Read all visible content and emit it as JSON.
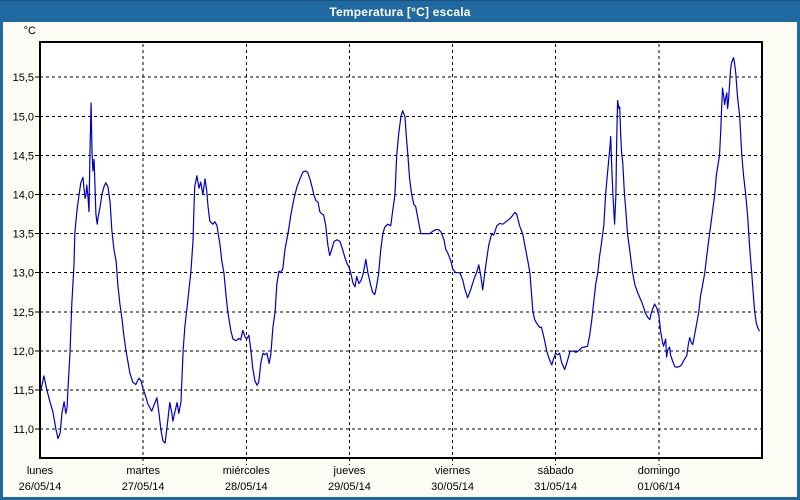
{
  "window": {
    "title": "Temperatura [°C] escala"
  },
  "colors": {
    "titlebar": "#2068A0",
    "window_border": "#2068A0",
    "background": "#FCFCF4",
    "plot_background": "#FFFFFF",
    "grid": "#000000",
    "series": "#0000BE"
  },
  "chart_data": {
    "type": "line",
    "title": "Temperatura [°C] escala",
    "unit_label": "°C",
    "grid": "dashed",
    "legend_position": "none",
    "ylim": [
      10.63,
      15.95
    ],
    "xlim_hours": [
      0,
      168
    ],
    "y_ticks": [
      {
        "value": 15.5,
        "label": "15,5"
      },
      {
        "value": 15.0,
        "label": "15,0"
      },
      {
        "value": 14.5,
        "label": "14,5"
      },
      {
        "value": 14.0,
        "label": "14,0"
      },
      {
        "value": 13.5,
        "label": "13,5"
      },
      {
        "value": 13.0,
        "label": "13,0"
      },
      {
        "value": 12.5,
        "label": "12,5"
      },
      {
        "value": 12.0,
        "label": "12,0"
      },
      {
        "value": 11.5,
        "label": "11,5"
      },
      {
        "value": 11.0,
        "label": "11,0"
      }
    ],
    "x_days": [
      {
        "name": "lunes",
        "date": "26/05/14"
      },
      {
        "name": "martes",
        "date": "27/05/14"
      },
      {
        "name": "miércoles",
        "date": "28/05/14"
      },
      {
        "name": "jueves",
        "date": "29/05/14"
      },
      {
        "name": "viernes",
        "date": "30/05/14"
      },
      {
        "name": "sábado",
        "date": "31/05/14"
      },
      {
        "name": "domingo",
        "date": "01/06/14"
      }
    ],
    "series_name": "Temperatura",
    "points": [
      [
        0.0,
        11.45
      ],
      [
        0.5,
        11.57
      ],
      [
        0.9,
        11.68
      ],
      [
        1.6,
        11.5
      ],
      [
        2.3,
        11.35
      ],
      [
        3.0,
        11.22
      ],
      [
        3.7,
        11.0
      ],
      [
        4.2,
        10.88
      ],
      [
        4.7,
        10.95
      ],
      [
        5.1,
        11.2
      ],
      [
        5.6,
        11.35
      ],
      [
        6.0,
        11.2
      ],
      [
        6.3,
        11.28
      ],
      [
        6.5,
        11.5
      ],
      [
        7.0,
        12.0
      ],
      [
        7.2,
        12.3
      ],
      [
        7.4,
        12.6
      ],
      [
        7.7,
        12.9
      ],
      [
        7.9,
        13.1
      ],
      [
        8.1,
        13.5
      ],
      [
        8.6,
        13.8
      ],
      [
        9.1,
        14.0
      ],
      [
        9.5,
        14.15
      ],
      [
        10.0,
        14.22
      ],
      [
        10.2,
        14.1
      ],
      [
        10.5,
        13.95
      ],
      [
        10.7,
        14.0
      ],
      [
        10.9,
        14.12
      ],
      [
        11.2,
        13.95
      ],
      [
        11.4,
        13.78
      ],
      [
        11.6,
        14.5
      ],
      [
        11.9,
        15.17
      ],
      [
        12.1,
        14.55
      ],
      [
        12.3,
        14.3
      ],
      [
        12.6,
        14.45
      ],
      [
        12.8,
        14.1
      ],
      [
        13.0,
        13.75
      ],
      [
        13.3,
        13.62
      ],
      [
        13.5,
        13.7
      ],
      [
        14.0,
        13.85
      ],
      [
        14.4,
        14.0
      ],
      [
        14.9,
        14.1
      ],
      [
        15.3,
        14.15
      ],
      [
        15.8,
        14.1
      ],
      [
        16.3,
        13.9
      ],
      [
        16.7,
        13.55
      ],
      [
        17.2,
        13.3
      ],
      [
        17.7,
        13.15
      ],
      [
        18.1,
        12.85
      ],
      [
        18.6,
        12.6
      ],
      [
        19.1,
        12.4
      ],
      [
        19.5,
        12.2
      ],
      [
        20.0,
        12.0
      ],
      [
        20.5,
        11.85
      ],
      [
        20.9,
        11.72
      ],
      [
        21.6,
        11.6
      ],
      [
        22.3,
        11.57
      ],
      [
        23.0,
        11.65
      ],
      [
        23.5,
        11.62
      ],
      [
        24.0,
        11.51
      ],
      [
        24.4,
        11.45
      ],
      [
        25.1,
        11.32
      ],
      [
        26.0,
        11.23
      ],
      [
        26.7,
        11.33
      ],
      [
        27.2,
        11.4
      ],
      [
        27.7,
        11.2
      ],
      [
        28.1,
        11.0
      ],
      [
        28.6,
        10.85
      ],
      [
        29.1,
        10.82
      ],
      [
        29.5,
        11.0
      ],
      [
        30.2,
        11.34
      ],
      [
        30.7,
        11.2
      ],
      [
        30.9,
        11.1
      ],
      [
        31.4,
        11.22
      ],
      [
        31.9,
        11.34
      ],
      [
        32.3,
        11.2
      ],
      [
        32.8,
        11.35
      ],
      [
        33.3,
        12.0
      ],
      [
        33.7,
        12.3
      ],
      [
        34.2,
        12.55
      ],
      [
        34.7,
        12.8
      ],
      [
        35.1,
        13.0
      ],
      [
        35.6,
        13.4
      ],
      [
        35.8,
        13.8
      ],
      [
        36.0,
        14.1
      ],
      [
        36.5,
        14.24
      ],
      [
        37.0,
        14.08
      ],
      [
        37.4,
        14.16
      ],
      [
        37.9,
        14.0
      ],
      [
        38.4,
        14.2
      ],
      [
        38.8,
        14.05
      ],
      [
        39.1,
        13.85
      ],
      [
        39.5,
        13.66
      ],
      [
        40.2,
        13.62
      ],
      [
        40.7,
        13.65
      ],
      [
        41.2,
        13.6
      ],
      [
        41.4,
        13.52
      ],
      [
        41.9,
        13.35
      ],
      [
        42.3,
        13.15
      ],
      [
        42.8,
        13.0
      ],
      [
        43.3,
        12.7
      ],
      [
        43.7,
        12.5
      ],
      [
        44.4,
        12.26
      ],
      [
        44.9,
        12.15
      ],
      [
        45.6,
        12.13
      ],
      [
        46.3,
        12.16
      ],
      [
        46.7,
        12.14
      ],
      [
        47.2,
        12.26
      ],
      [
        47.7,
        12.18
      ],
      [
        48.1,
        12.15
      ],
      [
        48.6,
        12.2
      ],
      [
        49.1,
        12.0
      ],
      [
        49.5,
        11.78
      ],
      [
        50.0,
        11.62
      ],
      [
        50.5,
        11.56
      ],
      [
        50.9,
        11.6
      ],
      [
        51.4,
        11.85
      ],
      [
        51.9,
        11.97
      ],
      [
        52.3,
        11.95
      ],
      [
        52.8,
        11.97
      ],
      [
        53.3,
        11.84
      ],
      [
        53.7,
        11.95
      ],
      [
        54.2,
        12.3
      ],
      [
        54.7,
        12.5
      ],
      [
        55.1,
        12.85
      ],
      [
        55.6,
        13.02
      ],
      [
        56.0,
        13.0
      ],
      [
        56.5,
        13.05
      ],
      [
        57.0,
        13.3
      ],
      [
        57.7,
        13.5
      ],
      [
        58.4,
        13.75
      ],
      [
        59.1,
        13.95
      ],
      [
        59.8,
        14.1
      ],
      [
        60.5,
        14.2
      ],
      [
        61.2,
        14.29
      ],
      [
        61.9,
        14.3
      ],
      [
        62.3,
        14.28
      ],
      [
        62.8,
        14.2
      ],
      [
        63.3,
        14.1
      ],
      [
        63.7,
        14.0
      ],
      [
        64.2,
        13.92
      ],
      [
        64.7,
        13.9
      ],
      [
        65.1,
        13.78
      ],
      [
        65.6,
        13.75
      ],
      [
        66.0,
        13.74
      ],
      [
        66.5,
        13.6
      ],
      [
        67.0,
        13.35
      ],
      [
        67.4,
        13.22
      ],
      [
        67.9,
        13.3
      ],
      [
        68.4,
        13.4
      ],
      [
        69.1,
        13.42
      ],
      [
        69.8,
        13.4
      ],
      [
        70.5,
        13.28
      ],
      [
        70.9,
        13.2
      ],
      [
        71.4,
        13.12
      ],
      [
        71.9,
        13.07
      ],
      [
        72.3,
        13.0
      ],
      [
        72.8,
        12.87
      ],
      [
        73.3,
        12.82
      ],
      [
        73.7,
        12.95
      ],
      [
        74.2,
        12.86
      ],
      [
        74.7,
        12.9
      ],
      [
        75.1,
        12.97
      ],
      [
        75.6,
        13.1
      ],
      [
        75.8,
        13.17
      ],
      [
        76.3,
        13.0
      ],
      [
        77.0,
        12.83
      ],
      [
        77.4,
        12.75
      ],
      [
        77.9,
        12.72
      ],
      [
        78.4,
        12.85
      ],
      [
        78.8,
        13.0
      ],
      [
        79.3,
        13.3
      ],
      [
        79.8,
        13.5
      ],
      [
        80.2,
        13.58
      ],
      [
        80.9,
        13.62
      ],
      [
        81.6,
        13.6
      ],
      [
        82.1,
        13.8
      ],
      [
        82.6,
        14.0
      ],
      [
        83.0,
        14.5
      ],
      [
        83.5,
        14.8
      ],
      [
        84.0,
        15.0
      ],
      [
        84.4,
        15.07
      ],
      [
        84.9,
        15.0
      ],
      [
        85.3,
        14.7
      ],
      [
        85.6,
        14.5
      ],
      [
        86.0,
        14.2
      ],
      [
        86.5,
        14.0
      ],
      [
        87.0,
        13.87
      ],
      [
        87.4,
        13.85
      ],
      [
        87.9,
        13.7
      ],
      [
        88.6,
        13.5
      ],
      [
        89.3,
        13.5
      ],
      [
        90.0,
        13.5
      ],
      [
        90.7,
        13.5
      ],
      [
        91.4,
        13.53
      ],
      [
        92.1,
        13.55
      ],
      [
        92.8,
        13.55
      ],
      [
        93.3,
        13.52
      ],
      [
        94.0,
        13.42
      ],
      [
        94.4,
        13.3
      ],
      [
        94.9,
        13.25
      ],
      [
        95.6,
        13.15
      ],
      [
        96.0,
        13.05
      ],
      [
        96.7,
        13.0
      ],
      [
        97.2,
        13.0
      ],
      [
        97.7,
        13.0
      ],
      [
        98.4,
        12.9
      ],
      [
        98.8,
        12.8
      ],
      [
        99.5,
        12.68
      ],
      [
        100.2,
        12.78
      ],
      [
        100.7,
        12.87
      ],
      [
        101.2,
        12.95
      ],
      [
        101.6,
        13.0
      ],
      [
        102.1,
        13.1
      ],
      [
        102.6,
        12.95
      ],
      [
        103.0,
        12.78
      ],
      [
        103.5,
        13.0
      ],
      [
        104.0,
        13.2
      ],
      [
        104.4,
        13.35
      ],
      [
        105.1,
        13.5
      ],
      [
        105.6,
        13.48
      ],
      [
        106.3,
        13.6
      ],
      [
        107.0,
        13.63
      ],
      [
        107.7,
        13.62
      ],
      [
        108.4,
        13.65
      ],
      [
        109.1,
        13.68
      ],
      [
        109.8,
        13.72
      ],
      [
        110.5,
        13.77
      ],
      [
        110.9,
        13.75
      ],
      [
        111.6,
        13.6
      ],
      [
        112.3,
        13.5
      ],
      [
        113.0,
        13.3
      ],
      [
        113.5,
        13.15
      ],
      [
        114.0,
        13.0
      ],
      [
        114.7,
        12.5
      ],
      [
        115.1,
        12.4
      ],
      [
        115.6,
        12.35
      ],
      [
        116.3,
        12.3
      ],
      [
        116.7,
        12.3
      ],
      [
        117.4,
        12.14
      ],
      [
        117.9,
        12.0
      ],
      [
        118.6,
        11.88
      ],
      [
        119.1,
        11.82
      ],
      [
        119.5,
        11.9
      ],
      [
        120.0,
        11.97
      ],
      [
        120.5,
        11.95
      ],
      [
        120.9,
        11.97
      ],
      [
        121.4,
        11.85
      ],
      [
        122.1,
        11.76
      ],
      [
        122.6,
        11.85
      ],
      [
        123.3,
        11.99
      ],
      [
        124.0,
        12.0
      ],
      [
        124.7,
        11.98
      ],
      [
        125.3,
        12.0
      ],
      [
        126.0,
        12.04
      ],
      [
        126.7,
        12.05
      ],
      [
        127.4,
        12.06
      ],
      [
        127.9,
        12.2
      ],
      [
        128.4,
        12.4
      ],
      [
        128.8,
        12.6
      ],
      [
        129.3,
        12.85
      ],
      [
        129.8,
        13.0
      ],
      [
        130.2,
        13.2
      ],
      [
        130.7,
        13.4
      ],
      [
        131.2,
        13.6
      ],
      [
        131.6,
        14.0
      ],
      [
        132.1,
        14.3
      ],
      [
        132.6,
        14.6
      ],
      [
        132.8,
        14.74
      ],
      [
        133.0,
        14.4
      ],
      [
        133.3,
        14.0
      ],
      [
        133.7,
        13.62
      ],
      [
        134.0,
        14.0
      ],
      [
        134.2,
        14.7
      ],
      [
        134.4,
        15.2
      ],
      [
        134.7,
        15.1
      ],
      [
        134.9,
        15.12
      ],
      [
        135.1,
        14.8
      ],
      [
        135.3,
        14.55
      ],
      [
        135.6,
        14.4
      ],
      [
        135.8,
        14.2
      ],
      [
        136.0,
        14.0
      ],
      [
        136.3,
        13.8
      ],
      [
        136.7,
        13.5
      ],
      [
        137.2,
        13.3
      ],
      [
        137.9,
        13.0
      ],
      [
        138.4,
        12.85
      ],
      [
        139.1,
        12.74
      ],
      [
        139.8,
        12.65
      ],
      [
        140.2,
        12.6
      ],
      [
        140.9,
        12.48
      ],
      [
        141.4,
        12.43
      ],
      [
        141.9,
        12.4
      ],
      [
        142.3,
        12.5
      ],
      [
        143.0,
        12.6
      ],
      [
        143.5,
        12.55
      ],
      [
        144.0,
        12.45
      ],
      [
        144.4,
        12.25
      ],
      [
        144.9,
        12.1
      ],
      [
        145.1,
        12.06
      ],
      [
        145.3,
        12.1
      ],
      [
        145.6,
        12.15
      ],
      [
        145.8,
        11.92
      ],
      [
        146.0,
        12.0
      ],
      [
        146.5,
        12.05
      ],
      [
        146.7,
        11.95
      ],
      [
        147.2,
        11.87
      ],
      [
        147.7,
        11.8
      ],
      [
        148.1,
        11.79
      ],
      [
        148.8,
        11.8
      ],
      [
        149.3,
        11.82
      ],
      [
        149.8,
        11.88
      ],
      [
        150.5,
        11.94
      ],
      [
        150.9,
        12.1
      ],
      [
        151.2,
        12.17
      ],
      [
        151.6,
        12.1
      ],
      [
        151.9,
        12.08
      ],
      [
        152.3,
        12.2
      ],
      [
        152.8,
        12.35
      ],
      [
        153.3,
        12.5
      ],
      [
        153.7,
        12.7
      ],
      [
        154.2,
        12.85
      ],
      [
        154.7,
        13.0
      ],
      [
        155.1,
        13.2
      ],
      [
        155.8,
        13.5
      ],
      [
        156.3,
        13.7
      ],
      [
        157.0,
        14.0
      ],
      [
        157.4,
        14.25
      ],
      [
        158.1,
        14.5
      ],
      [
        158.4,
        14.8
      ],
      [
        158.6,
        15.1
      ],
      [
        158.8,
        15.36
      ],
      [
        159.1,
        15.25
      ],
      [
        159.3,
        15.15
      ],
      [
        159.5,
        15.22
      ],
      [
        159.8,
        15.3
      ],
      [
        160.0,
        15.1
      ],
      [
        160.2,
        15.2
      ],
      [
        160.5,
        15.45
      ],
      [
        160.7,
        15.6
      ],
      [
        160.9,
        15.68
      ],
      [
        161.2,
        15.73
      ],
      [
        161.4,
        15.75
      ],
      [
        161.6,
        15.68
      ],
      [
        161.9,
        15.55
      ],
      [
        162.1,
        15.4
      ],
      [
        162.3,
        15.25
      ],
      [
        162.8,
        15.0
      ],
      [
        163.3,
        14.5
      ],
      [
        163.7,
        14.25
      ],
      [
        164.2,
        14.0
      ],
      [
        164.7,
        13.7
      ],
      [
        164.9,
        13.5
      ],
      [
        165.3,
        13.2
      ],
      [
        165.6,
        13.0
      ],
      [
        166.0,
        12.7
      ],
      [
        166.3,
        12.5
      ],
      [
        166.7,
        12.35
      ],
      [
        167.0,
        12.3
      ],
      [
        167.4,
        12.25
      ]
    ]
  }
}
